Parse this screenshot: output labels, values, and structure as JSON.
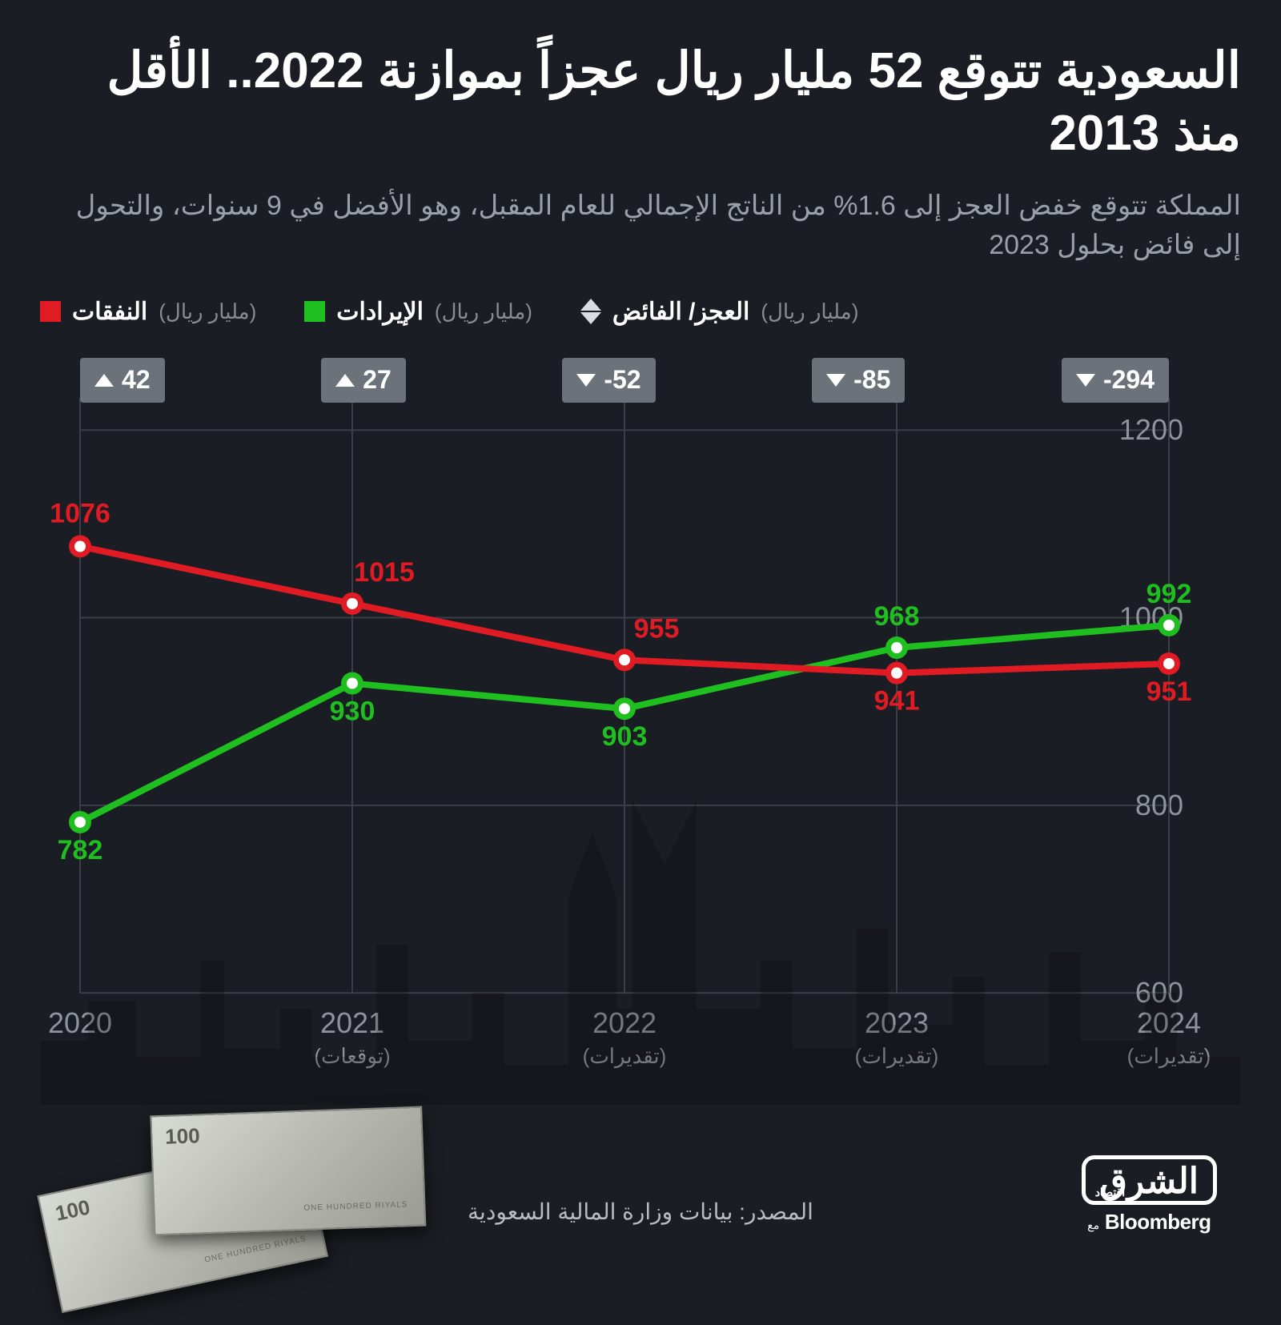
{
  "title": "السعودية تتوقع 52 مليار ريال عجزاً بموازنة 2022.. الأقل منذ 2013",
  "subtitle": "المملكة تتوقع خفض العجز إلى 1.6% من الناتج الإجمالي للعام المقبل، وهو الأفضل في 9 سنوات، والتحول إلى فائض بحلول 2023",
  "legend": {
    "expenditures": {
      "label": "النفقات",
      "unit": "(مليار ريال)",
      "color": "#e11b23"
    },
    "revenues": {
      "label": "الإيرادات",
      "unit": "(مليار ريال)",
      "color": "#1fbf1f"
    },
    "deficit": {
      "label": "العجز/ الفائض",
      "unit": "(مليار ريال)"
    }
  },
  "chart": {
    "type": "line",
    "ylim": [
      600,
      1200
    ],
    "ytick_step": 200,
    "yticks": [
      600,
      800,
      1000,
      1200
    ],
    "grid_color": "#3a3f47",
    "axis_label_color": "#8e949c",
    "axis_label_fontsize": 36,
    "line_width": 8,
    "marker_radius": 14,
    "marker_inner_radius": 7,
    "marker_inner_color": "#ffffff",
    "value_label_fontsize": 34,
    "value_label_fontweight": 800,
    "xlabel_fontsize": 36,
    "xlabel_sub_fontsize": 26,
    "xlabel_sub_color": "#8e949c",
    "years": [
      {
        "year": "2020",
        "sub": ""
      },
      {
        "year": "2021",
        "sub": "(توقعات)"
      },
      {
        "year": "2022",
        "sub": "(تقديرات)"
      },
      {
        "year": "2023",
        "sub": "(تقديرات)"
      },
      {
        "year": "2024",
        "sub": "(تقديرات)"
      }
    ],
    "series": {
      "expenditures": {
        "color": "#e11b23",
        "values": [
          1076,
          1015,
          955,
          941,
          951
        ],
        "label_offsets": [
          {
            "dx": 0,
            "dy": -30
          },
          {
            "dx": 40,
            "dy": -28
          },
          {
            "dx": 40,
            "dy": -28
          },
          {
            "dx": 0,
            "dy": 46
          },
          {
            "dx": 0,
            "dy": 46
          }
        ]
      },
      "revenues": {
        "color": "#1fbf1f",
        "values": [
          782,
          930,
          903,
          968,
          992
        ],
        "label_offsets": [
          {
            "dx": 0,
            "dy": 46
          },
          {
            "dx": 0,
            "dy": 46
          },
          {
            "dx": 0,
            "dy": 46
          },
          {
            "dx": 0,
            "dy": -28
          },
          {
            "dx": 0,
            "dy": -28
          }
        ]
      }
    },
    "badges": [
      {
        "value": "-294",
        "direction": "down"
      },
      {
        "value": "-85",
        "direction": "down"
      },
      {
        "value": "-52",
        "direction": "down"
      },
      {
        "value": "27",
        "direction": "up"
      },
      {
        "value": "42",
        "direction": "up"
      }
    ],
    "badge_bg": "#6c727a",
    "badge_text_color": "#ffffff",
    "badge_fontsize": 32
  },
  "footer": {
    "source": "المصدر: بيانات وزارة المالية السعودية",
    "brand_ar": "الشرق",
    "brand_sub": "اقتصاد",
    "brand_en": "Bloomberg",
    "brand_en_prefix": "مع"
  },
  "colors": {
    "bg": "#1a1d23",
    "text": "#ffffff",
    "subtext": "#9aa0a8"
  }
}
